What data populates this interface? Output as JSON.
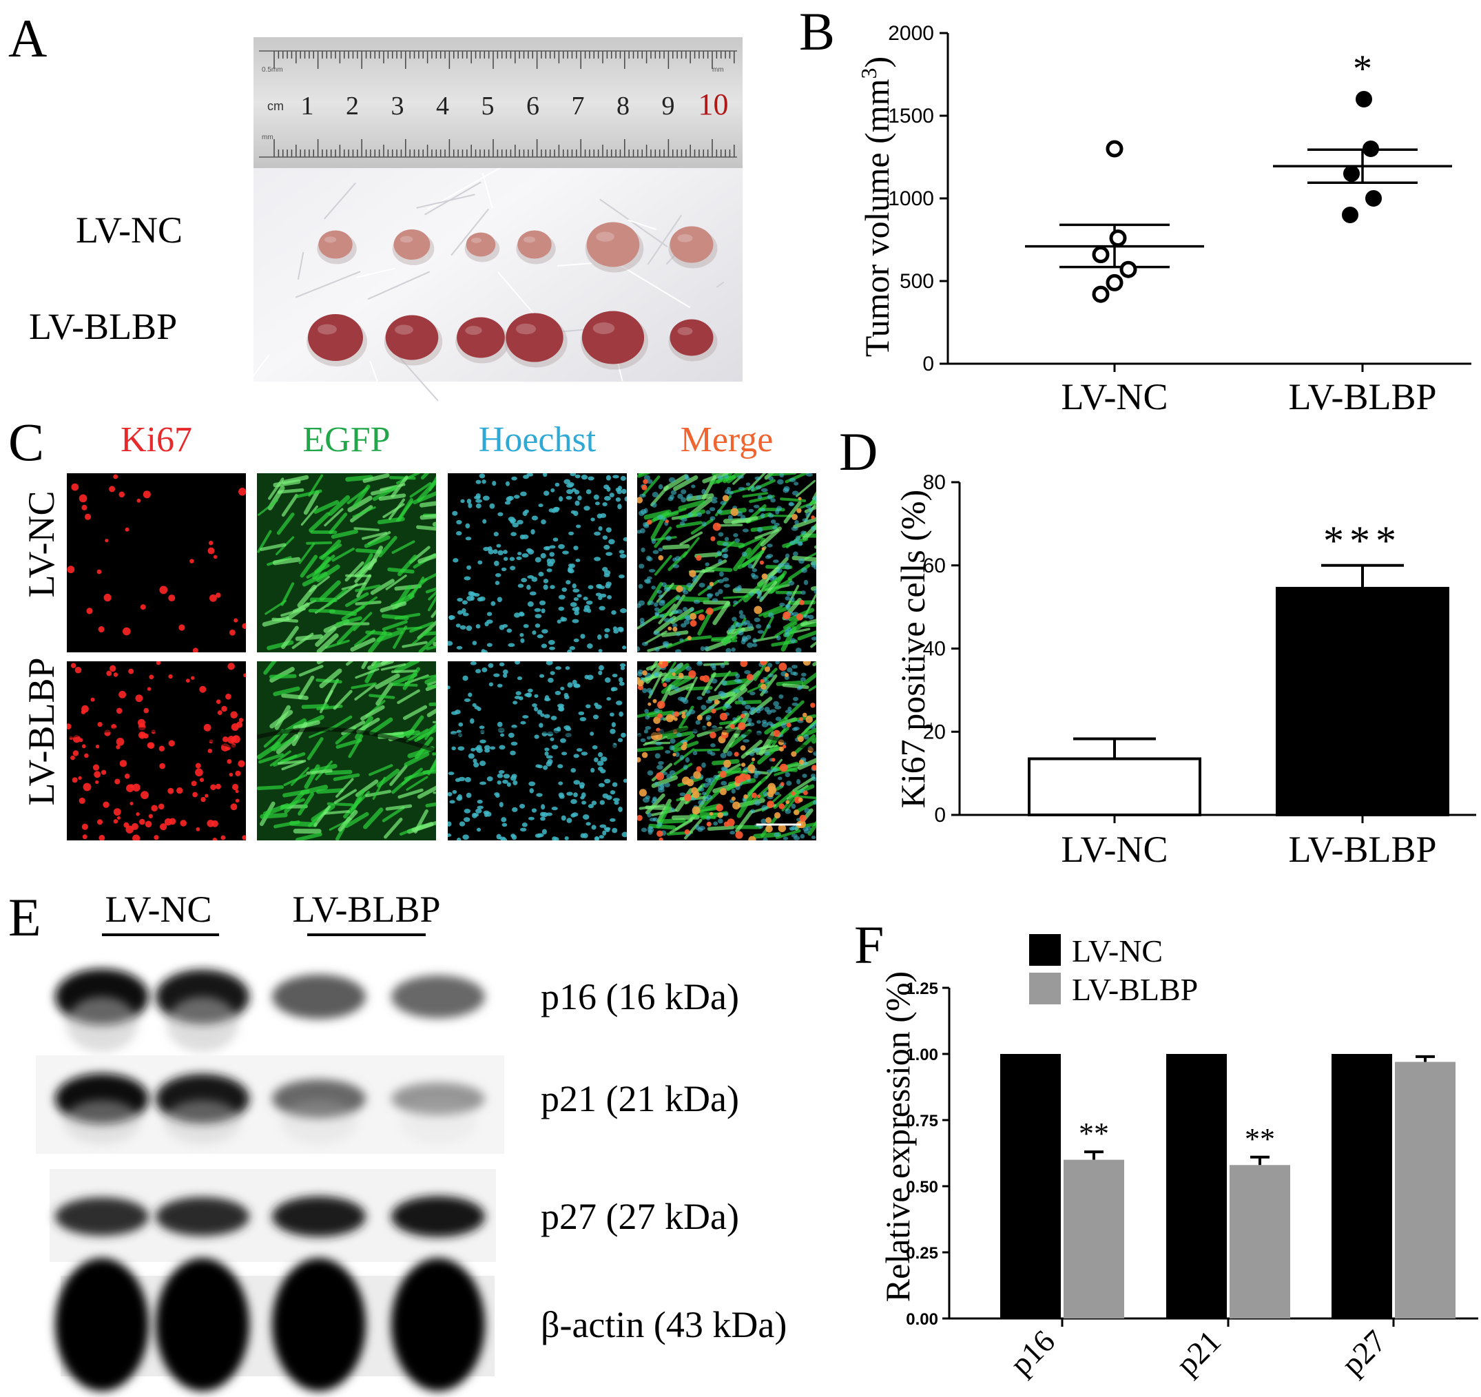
{
  "panels": {
    "a": {
      "letter": "A",
      "rows": [
        "LV-NC",
        "LV-BLBP"
      ],
      "ruler": {
        "unit": "cm",
        "numbers": [
          "1",
          "2",
          "3",
          "4",
          "5",
          "6",
          "7",
          "8",
          "9",
          "10"
        ],
        "tiny_top": "0.5mm",
        "tiny_unit_top": "mm",
        "tiny_bottom": "mm",
        "highlight_color": "#b01818"
      },
      "tumors": {
        "LV-NC": [
          0.55,
          0.6,
          0.45,
          0.55,
          0.95,
          0.75
        ],
        "LV-BLBP": [
          1.0,
          0.95,
          0.85,
          1.05,
          1.15,
          0.75
        ]
      },
      "tumor_color": "#9e3a40",
      "nc_tumor_color": "#c98a82"
    },
    "b": {
      "letter": "B",
      "ylabel": "Tumor volume (mm",
      "ylabel_sup": "3",
      "ylabel_close": ")",
      "categories": [
        "LV-NC",
        "LV-BLBP"
      ],
      "significance": "*"
    },
    "c": {
      "letter": "C",
      "channels": [
        {
          "label": "Ki67",
          "color": "#e8292b"
        },
        {
          "label": "EGFP",
          "color": "#22a64a"
        },
        {
          "label": "Hoechst",
          "color": "#2ea9d6"
        },
        {
          "label": "Merge",
          "color": "#f0652f"
        }
      ],
      "rows": [
        "LV-NC",
        "LV-BLBP"
      ]
    },
    "d": {
      "letter": "D",
      "ylabel": "Ki67 positive cells (%)",
      "significance": "***"
    },
    "e": {
      "letter": "E",
      "groups": [
        "LV-NC",
        "LV-BLBP"
      ],
      "bands": [
        {
          "label": "p16 (16 kDa)",
          "intensity": [
            0.95,
            0.9,
            0.6,
            0.55
          ]
        },
        {
          "label": "p21 (21 kDa)",
          "intensity": [
            0.95,
            0.92,
            0.55,
            0.35
          ]
        },
        {
          "label": "p27 (27 kDa)",
          "intensity": [
            0.8,
            0.82,
            0.88,
            0.9
          ]
        },
        {
          "label": "β-actin (43 kDa)",
          "intensity": [
            1.0,
            1.0,
            1.0,
            1.0
          ]
        }
      ]
    },
    "f": {
      "letter": "F",
      "ylabel": "Relative expression (%)",
      "significance": [
        "**",
        "**",
        ""
      ]
    }
  },
  "colors": {
    "black": "#000000",
    "gray": "#9a9a9a",
    "white": "#ffffff"
  },
  "chart_data": [
    {
      "type": "scatter",
      "panel": "B",
      "categories": [
        "LV-NC",
        "LV-BLBP"
      ],
      "ylabel": "Tumor volume (mm3)",
      "ylim": [
        0,
        2000
      ],
      "yticks": [
        0,
        500,
        1000,
        1500,
        2000
      ],
      "series": [
        {
          "name": "LV-NC",
          "points": [
            420,
            490,
            570,
            660,
            760,
            1300
          ],
          "mean": 710,
          "sem_low": 585,
          "sem_high": 840,
          "marker": "open"
        },
        {
          "name": "LV-BLBP",
          "points": [
            900,
            1000,
            1150,
            1300,
            1600
          ],
          "mean": 1195,
          "sem_low": 1095,
          "sem_high": 1295,
          "marker": "filled"
        }
      ],
      "annotation": "*"
    },
    {
      "type": "bar",
      "panel": "D",
      "categories": [
        "LV-NC",
        "LV-BLBP"
      ],
      "values": [
        13.5,
        54.5
      ],
      "errors": [
        4.8,
        5.5
      ],
      "fills": [
        "#ffffff",
        "#000000"
      ],
      "ylabel": "Ki67 positive cells (%)",
      "ylim": [
        0,
        80
      ],
      "yticks": [
        0,
        20,
        40,
        60,
        80
      ],
      "annotation": "***"
    },
    {
      "type": "bar",
      "panel": "F",
      "categories": [
        "p16",
        "p21",
        "p27"
      ],
      "series": [
        {
          "name": "LV-NC",
          "values": [
            1.0,
            1.0,
            1.0
          ],
          "errors": [
            0,
            0,
            0
          ],
          "color": "#000000"
        },
        {
          "name": "LV-BLBP",
          "values": [
            0.6,
            0.58,
            0.97
          ],
          "errors": [
            0.03,
            0.03,
            0.02
          ],
          "color": "#9a9a9a"
        }
      ],
      "ylabel": "Relative expression (%)",
      "ylim": [
        0,
        1.25
      ],
      "yticks": [
        "0.00",
        "0.25",
        "0.50",
        "0.75",
        "1.00",
        "1.25"
      ],
      "legend": "top-left",
      "annotations": [
        "**",
        "**",
        ""
      ]
    }
  ]
}
